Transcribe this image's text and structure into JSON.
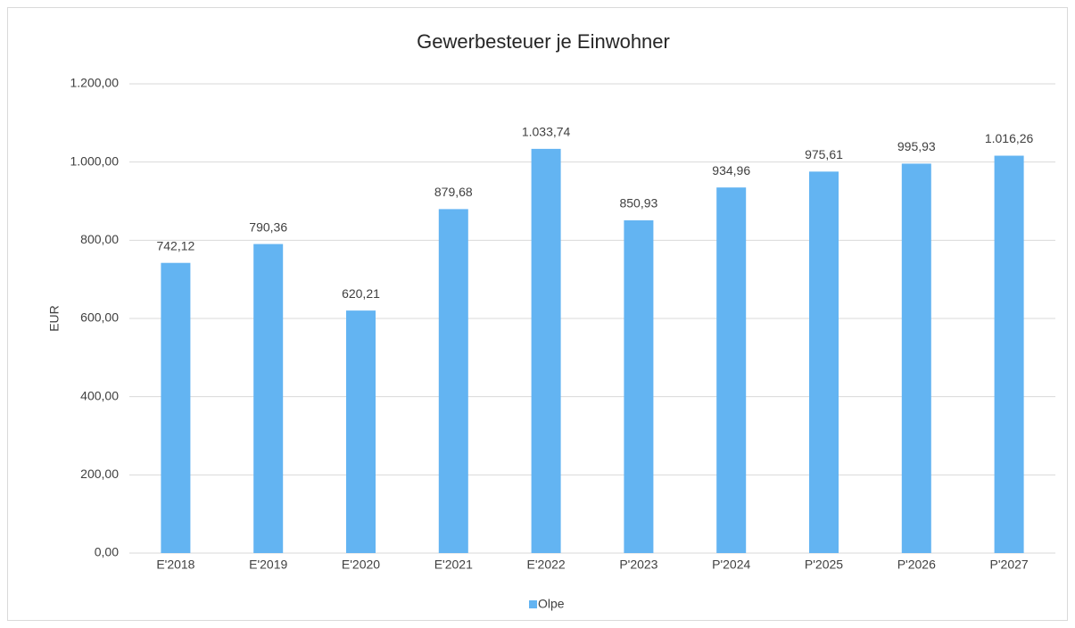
{
  "chart_data": {
    "type": "bar",
    "title": "Gewerbesteuer je Einwohner",
    "y_label": "EUR",
    "categories": [
      "E'2018",
      "E'2019",
      "E'2020",
      "E'2021",
      "E'2022",
      "P'2023",
      "P'2024",
      "P'2025",
      "P'2026",
      "P'2027"
    ],
    "series": [
      {
        "name": "Olpe",
        "color": "#63b4f2",
        "values": [
          742.12,
          790.36,
          620.21,
          879.68,
          1033.74,
          850.93,
          934.96,
          975.61,
          995.93,
          1016.26
        ],
        "value_labels": [
          "742,12",
          "790,36",
          "620,21",
          "879,68",
          "1.033,74",
          "850,93",
          "934,96",
          "975,61",
          "995,93",
          "1.016,26"
        ]
      }
    ],
    "ylim": [
      0,
      1200
    ],
    "yticks": [
      {
        "value": 0,
        "label": "0,00"
      },
      {
        "value": 200,
        "label": "200,00"
      },
      {
        "value": 400,
        "label": "400,00"
      },
      {
        "value": 600,
        "label": "600,00"
      },
      {
        "value": 800,
        "label": "800,00"
      },
      {
        "value": 1000,
        "label": "1.000,00"
      },
      {
        "value": 1200,
        "label": "1.200,00"
      }
    ],
    "grid": true,
    "legend": "bottom"
  }
}
